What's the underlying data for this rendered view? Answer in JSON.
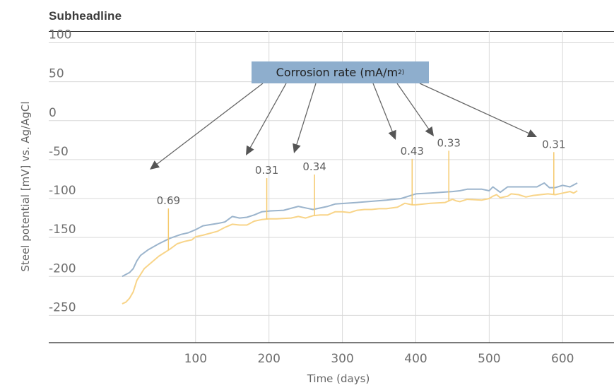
{
  "subheadline": "Subheadline",
  "colors": {
    "series_a": "#9bb4cc",
    "series_b": "#f8d488",
    "marker": "#f5c96c",
    "arrow": "#666666",
    "legend_bg": "#8eaecd",
    "grid": "#d9d9d9",
    "axis": "#2b2b2b"
  },
  "legend": {
    "label": "Corrosion rate (mA/m",
    "superscript": "2)"
  },
  "chart_data": {
    "type": "line",
    "title": "Subheadline",
    "xlabel": "Time (days)",
    "ylabel": "Steel potential [mV] vs. Ag/AgCl",
    "xlim": [
      -100,
      670
    ],
    "ylim": [
      -285,
      115
    ],
    "xticks": [
      100,
      200,
      300,
      400,
      500,
      600
    ],
    "yticks": [
      100,
      50,
      0,
      -50,
      -100,
      -150,
      -200,
      -250
    ],
    "grid": true,
    "series": [
      {
        "color": "#9bb4cc",
        "points": [
          [
            0,
            -200
          ],
          [
            10,
            -195
          ],
          [
            15,
            -190
          ],
          [
            20,
            -180
          ],
          [
            25,
            -173
          ],
          [
            35,
            -166
          ],
          [
            50,
            -158
          ],
          [
            65,
            -151
          ],
          [
            80,
            -146
          ],
          [
            90,
            -144
          ],
          [
            100,
            -140
          ],
          [
            110,
            -135
          ],
          [
            130,
            -132
          ],
          [
            140,
            -130
          ],
          [
            150,
            -123
          ],
          [
            160,
            -125
          ],
          [
            170,
            -124
          ],
          [
            180,
            -121
          ],
          [
            190,
            -117
          ],
          [
            200,
            -116
          ],
          [
            220,
            -115
          ],
          [
            240,
            -110
          ],
          [
            250,
            -112
          ],
          [
            260,
            -114
          ],
          [
            280,
            -110
          ],
          [
            290,
            -107
          ],
          [
            320,
            -105
          ],
          [
            360,
            -102
          ],
          [
            380,
            -100
          ],
          [
            400,
            -94
          ],
          [
            420,
            -93
          ],
          [
            450,
            -91
          ],
          [
            460,
            -90
          ],
          [
            470,
            -88
          ],
          [
            490,
            -88
          ],
          [
            500,
            -90
          ],
          [
            505,
            -85
          ],
          [
            515,
            -92
          ],
          [
            525,
            -85
          ],
          [
            545,
            -85
          ],
          [
            565,
            -85
          ],
          [
            575,
            -80
          ],
          [
            582,
            -86
          ],
          [
            590,
            -86
          ],
          [
            600,
            -83
          ],
          [
            610,
            -85
          ],
          [
            620,
            -80
          ]
        ]
      },
      {
        "color": "#f8d488",
        "points": [
          [
            0,
            -235
          ],
          [
            5,
            -233
          ],
          [
            10,
            -228
          ],
          [
            15,
            -220
          ],
          [
            20,
            -205
          ],
          [
            30,
            -190
          ],
          [
            40,
            -182
          ],
          [
            50,
            -174
          ],
          [
            65,
            -165
          ],
          [
            75,
            -158
          ],
          [
            85,
            -155
          ],
          [
            95,
            -153
          ],
          [
            100,
            -149
          ],
          [
            110,
            -147
          ],
          [
            130,
            -142
          ],
          [
            140,
            -137
          ],
          [
            150,
            -133
          ],
          [
            160,
            -134
          ],
          [
            170,
            -134
          ],
          [
            180,
            -129
          ],
          [
            190,
            -127
          ],
          [
            200,
            -126
          ],
          [
            210,
            -126
          ],
          [
            230,
            -125
          ],
          [
            240,
            -123
          ],
          [
            250,
            -125
          ],
          [
            260,
            -122
          ],
          [
            270,
            -121
          ],
          [
            280,
            -121
          ],
          [
            290,
            -117
          ],
          [
            300,
            -117
          ],
          [
            310,
            -118
          ],
          [
            320,
            -115
          ],
          [
            330,
            -114
          ],
          [
            340,
            -114
          ],
          [
            350,
            -113
          ],
          [
            360,
            -113
          ],
          [
            375,
            -111
          ],
          [
            385,
            -106
          ],
          [
            395,
            -108
          ],
          [
            400,
            -108
          ],
          [
            420,
            -106
          ],
          [
            440,
            -105
          ],
          [
            450,
            -101
          ],
          [
            455,
            -103
          ],
          [
            460,
            -104
          ],
          [
            470,
            -101
          ],
          [
            490,
            -102
          ],
          [
            500,
            -100
          ],
          [
            505,
            -97
          ],
          [
            510,
            -95
          ],
          [
            515,
            -99
          ],
          [
            520,
            -98
          ],
          [
            525,
            -97
          ],
          [
            530,
            -94
          ],
          [
            540,
            -95
          ],
          [
            550,
            -98
          ],
          [
            560,
            -96
          ],
          [
            570,
            -95
          ],
          [
            580,
            -94
          ],
          [
            590,
            -95
          ],
          [
            600,
            -93
          ],
          [
            610,
            -91
          ],
          [
            615,
            -93
          ],
          [
            620,
            -90
          ]
        ]
      }
    ],
    "annotations": [
      {
        "label": "0.69",
        "x": 63
      },
      {
        "label": "0.31",
        "x": 197
      },
      {
        "label": "0.34",
        "x": 262
      },
      {
        "label": "0.43",
        "x": 395
      },
      {
        "label": "0.33",
        "x": 445
      },
      {
        "label": "0.31",
        "x": 588
      }
    ]
  }
}
